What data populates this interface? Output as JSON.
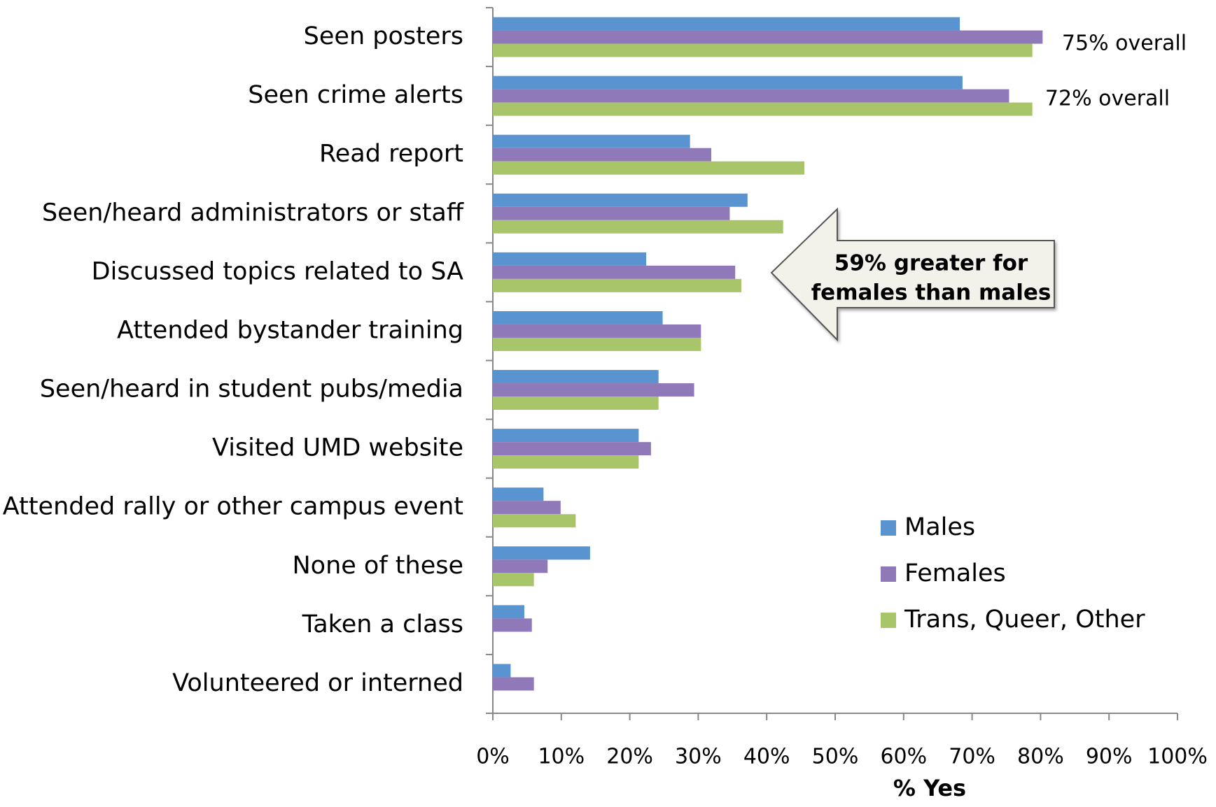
{
  "chart_data": {
    "type": "bar",
    "orientation": "horizontal",
    "x_label": "% Yes",
    "categories": [
      "Seen posters",
      "Seen crime alerts",
      "Read report",
      "Seen/heard administrators or staff",
      "Discussed topics related to SA",
      "Attended bystander training",
      "Seen/heard in student pubs/media",
      "Visited UMD website",
      "Attended rally or other campus event",
      "None of these",
      "Taken a class",
      "Volunteered or interned"
    ],
    "series": [
      {
        "name": "Males",
        "color": "#5a94d0",
        "values": [
          68.2,
          68.6,
          28.8,
          37.2,
          22.4,
          24.8,
          24.2,
          21.3,
          7.4,
          14.2,
          4.6,
          2.6
        ]
      },
      {
        "name": "Females",
        "color": "#8f79b8",
        "values": [
          80.3,
          75.4,
          31.9,
          34.6,
          35.4,
          30.4,
          29.4,
          23.1,
          9.9,
          8.0,
          5.7,
          6.0
        ]
      },
      {
        "name": "Trans, Queer, Other",
        "color": "#a9c56a",
        "values": [
          78.8,
          78.8,
          45.5,
          42.4,
          36.3,
          30.4,
          24.2,
          21.3,
          12.1,
          6.0,
          null,
          null
        ]
      }
    ],
    "xlim": [
      0,
      100
    ],
    "xticks": [
      {
        "value": 0,
        "label": "0%"
      },
      {
        "value": 10,
        "label": "10%"
      },
      {
        "value": 20,
        "label": "20%"
      },
      {
        "value": 30,
        "label": "30%"
      },
      {
        "value": 40,
        "label": "40%"
      },
      {
        "value": 50,
        "label": "50%"
      },
      {
        "value": 60,
        "label": "60%"
      },
      {
        "value": 70,
        "label": "70%"
      },
      {
        "value": 80,
        "label": "80%"
      },
      {
        "value": 90,
        "label": "90%"
      },
      {
        "value": 100,
        "label": "100%"
      }
    ],
    "annotations": [
      "75% overall",
      "72% overall"
    ],
    "callout": [
      "59% greater for",
      "females than males"
    ],
    "legend": "right"
  }
}
